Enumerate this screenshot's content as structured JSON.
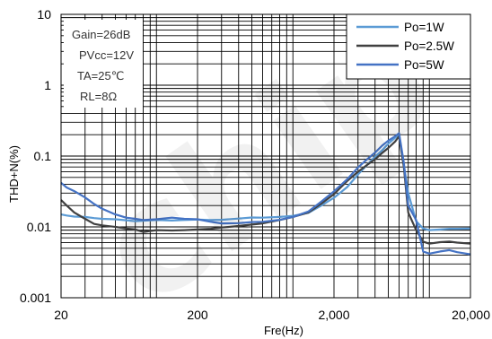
{
  "chart_data": {
    "type": "line",
    "title": "",
    "xlabel": "Fre(Hz)",
    "ylabel": "THD+N(%)",
    "xscale": "log",
    "yscale": "log",
    "xlim": [
      20,
      20000
    ],
    "ylim": [
      0.001,
      10
    ],
    "x_ticks": [
      "20",
      "200",
      "2,000",
      "20,000"
    ],
    "y_ticks": [
      "0.001",
      "0.01",
      "0.1",
      "1",
      "10"
    ],
    "grid": true,
    "legend": "top-right",
    "conditions": [
      "Gain=26dB",
      "PVcc=12V",
      "TA=25℃",
      "RL=8Ω"
    ],
    "watermark": "chip",
    "series": [
      {
        "name": "Po=1W",
        "color": "#5b9bd5",
        "x": [
          20,
          22,
          25,
          30,
          35,
          40,
          50,
          60,
          70,
          80,
          100,
          130,
          160,
          200,
          250,
          300,
          400,
          500,
          600,
          800,
          1000,
          1300,
          1600,
          2000,
          2500,
          3000,
          3500,
          4000,
          4500,
          5000,
          5600,
          6000,
          6500,
          7000,
          8000,
          9000,
          10000,
          12000,
          14000,
          16000,
          20000
        ],
        "y": [
          0.015,
          0.0145,
          0.014,
          0.0138,
          0.0133,
          0.013,
          0.0128,
          0.0124,
          0.012,
          0.0122,
          0.0125,
          0.0123,
          0.0125,
          0.0127,
          0.0125,
          0.0126,
          0.0131,
          0.0136,
          0.0135,
          0.0138,
          0.0143,
          0.0158,
          0.0198,
          0.0258,
          0.0365,
          0.055,
          0.075,
          0.098,
          0.12,
          0.15,
          0.18,
          0.2,
          0.075,
          0.03,
          0.012,
          0.0095,
          0.009,
          0.0092,
          0.0094,
          0.0094,
          0.0095
        ]
      },
      {
        "name": "Po=2.5W",
        "color": "#404040",
        "x": [
          20,
          22,
          25,
          30,
          35,
          40,
          50,
          60,
          70,
          80,
          100,
          130,
          160,
          200,
          250,
          300,
          400,
          500,
          600,
          800,
          1000,
          1300,
          1600,
          2000,
          2500,
          3000,
          3500,
          4000,
          4500,
          5000,
          5600,
          6000,
          6500,
          7000,
          8000,
          9000,
          10000,
          12000,
          14000,
          16000,
          20000
        ],
        "y": [
          0.024,
          0.02,
          0.016,
          0.013,
          0.011,
          0.0105,
          0.01,
          0.0095,
          0.0092,
          0.0085,
          0.009,
          0.0089,
          0.009,
          0.0092,
          0.0094,
          0.0098,
          0.0103,
          0.0108,
          0.0112,
          0.0125,
          0.0138,
          0.016,
          0.021,
          0.029,
          0.0445,
          0.06,
          0.075,
          0.09,
          0.11,
          0.13,
          0.16,
          0.19,
          0.07,
          0.016,
          0.009,
          0.0062,
          0.0058,
          0.0061,
          0.0062,
          0.006,
          0.0058
        ]
      },
      {
        "name": "Po=5W",
        "color": "#4472c4",
        "x": [
          20,
          22,
          25,
          30,
          35,
          40,
          50,
          60,
          70,
          80,
          100,
          130,
          160,
          200,
          250,
          300,
          400,
          500,
          600,
          800,
          1000,
          1300,
          1600,
          2000,
          2500,
          3000,
          3500,
          4000,
          4500,
          5000,
          5600,
          6000,
          6500,
          7000,
          8000,
          9000,
          10000,
          12000,
          14000,
          16000,
          20000
        ],
        "y": [
          0.042,
          0.036,
          0.032,
          0.026,
          0.021,
          0.018,
          0.015,
          0.0135,
          0.013,
          0.0125,
          0.0128,
          0.0135,
          0.013,
          0.0128,
          0.0118,
          0.0112,
          0.0113,
          0.0117,
          0.0118,
          0.0126,
          0.0138,
          0.0165,
          0.0225,
          0.0318,
          0.047,
          0.069,
          0.09,
          0.112,
          0.14,
          0.165,
          0.19,
          0.21,
          0.08,
          0.02,
          0.0125,
          0.0045,
          0.0042,
          0.0045,
          0.0047,
          0.0044,
          0.0041
        ]
      }
    ]
  }
}
